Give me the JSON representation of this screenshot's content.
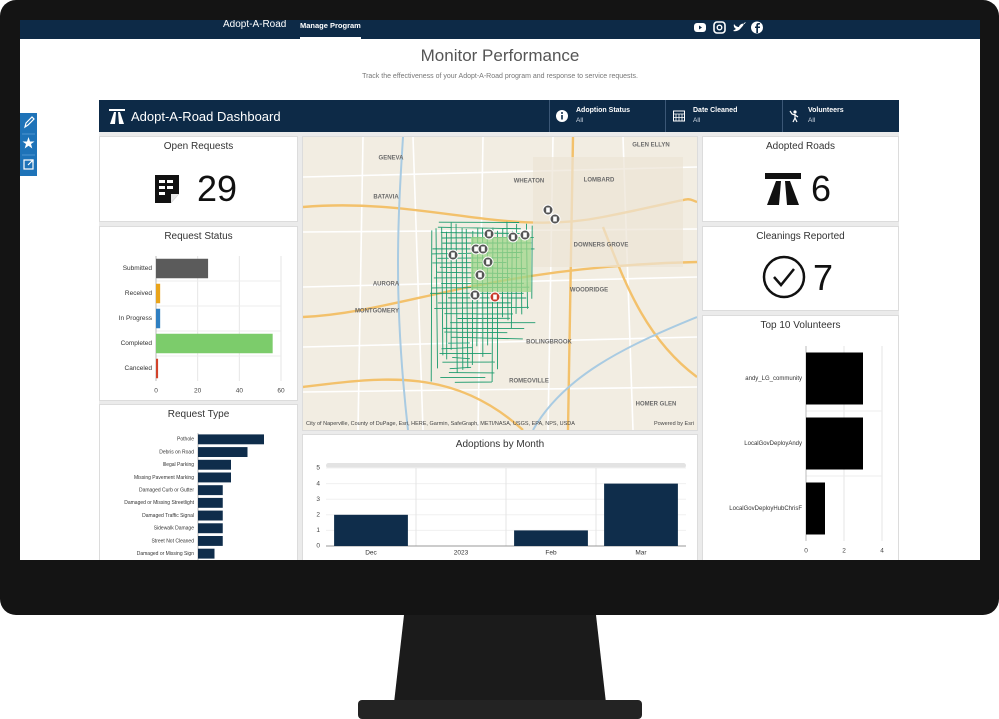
{
  "nav": {
    "brand": "Adopt-A-Road",
    "tab": "Manage Program"
  },
  "header": {
    "title": "Monitor Performance",
    "subtitle": "Track the effectiveness of your Adopt-A-Road program and response to service requests."
  },
  "dashboard": {
    "title": "Adopt-A-Road Dashboard",
    "filters": [
      {
        "label": "Adoption Status",
        "value": "All"
      },
      {
        "label": "Date Cleaned",
        "value": "All"
      },
      {
        "label": "Volunteers",
        "value": "All"
      }
    ]
  },
  "indicators": [
    {
      "title": "Open Requests",
      "value": 29
    },
    {
      "title": "Adopted Roads",
      "value": 6
    },
    {
      "title": "Cleanings Reported",
      "value": 7
    }
  ],
  "map": {
    "places": [
      "GENEVA",
      "GLEN ELLYN",
      "WHEATON",
      "LOMBARD",
      "BATAVIA",
      "DOWNERS GROVE",
      "AURORA",
      "WOODRIDGE",
      "MONTGOMERY",
      "BOLINGBROOK",
      "ROMEOVILLE",
      "HOMER GLEN"
    ],
    "attribution": "City of Naperville, County of DuPage, Esri, HERE, Garmin, SafeGraph, METI/NASA, USGS, EPA, NPS, USDA",
    "powered": "Powered by Esri"
  },
  "chart_data": [
    {
      "type": "bar",
      "orientation": "horizontal",
      "title": "Request Status",
      "categories": [
        "Submitted",
        "Received",
        "In Progress",
        "Completed",
        "Canceled"
      ],
      "values": [
        25,
        2,
        2,
        56,
        1
      ],
      "colors": [
        "#5b5b5b",
        "#e9a41b",
        "#2f7fc1",
        "#7ccc6b",
        "#d2432b"
      ],
      "xlim": [
        0,
        60
      ],
      "xticks": [
        0,
        20,
        40,
        60
      ],
      "grid": true
    },
    {
      "type": "bar",
      "orientation": "horizontal",
      "title": "Request Type",
      "categories": [
        "Pothole",
        "Debris on Road",
        "Illegal Parking",
        "Missing Pavement Marking",
        "Damaged Curb or Gutter",
        "Damaged or Missing Streetlight",
        "Damaged Traffic Signal",
        "Sidewalk Damage",
        "Street Not Cleaned",
        "Damaged or Missing Sign"
      ],
      "values": [
        8,
        6,
        4,
        4,
        3,
        3,
        3,
        3,
        3,
        2
      ],
      "color": "#0f2d4b"
    },
    {
      "type": "bar",
      "orientation": "vertical",
      "title": "Adoptions by Month",
      "categories": [
        "Dec",
        "2023",
        "Feb",
        "Mar"
      ],
      "values": [
        2,
        0,
        1,
        4
      ],
      "color": "#0f2d4b",
      "ylim": [
        0,
        5
      ],
      "yticks": [
        0,
        1,
        2,
        3,
        4,
        5
      ],
      "grid": true
    },
    {
      "type": "bar",
      "orientation": "horizontal",
      "title": "Top 10 Volunteers",
      "categories": [
        "andy_LG_community",
        "LocalGovDeployAndy",
        "LocalGovDeployHubChrisF"
      ],
      "values": [
        3,
        3,
        1
      ],
      "color": "#000000",
      "xlim": [
        0,
        4
      ],
      "xticks": [
        0,
        2,
        4
      ],
      "grid": true
    }
  ]
}
